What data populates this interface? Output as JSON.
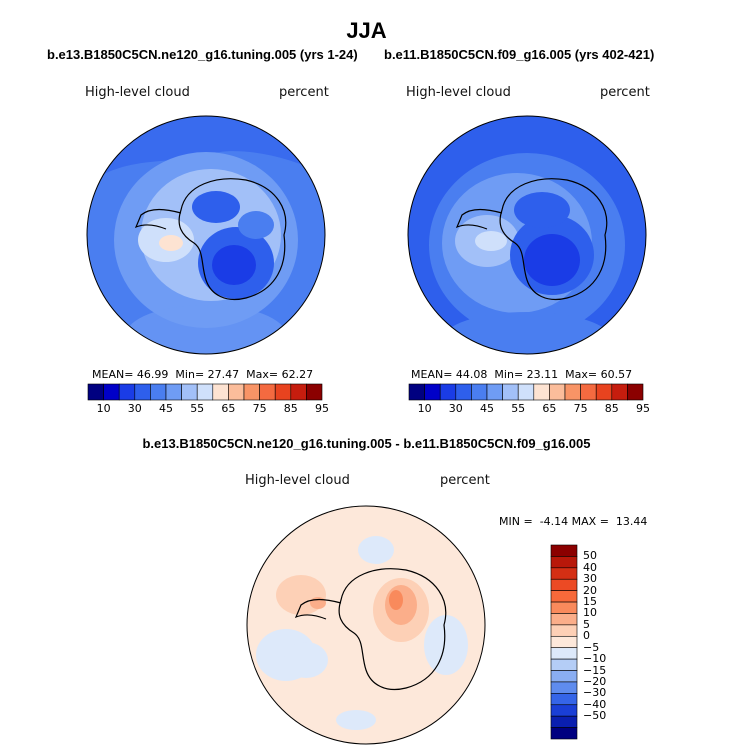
{
  "chart_data": [
    {
      "type": "heatmap",
      "projection": "south-polar-stereographic",
      "title": "JJA",
      "subtitle": "b.e13.B1850C5CN.ne120_g16.tuning.005 (yrs 1-24)",
      "variable_label": "High-level cloud",
      "units_label": "percent",
      "stats": {
        "mean_label": "MEAN=",
        "mean": "46.99",
        "min_label": "Min=",
        "min": "27.47",
        "max_label": "Max=",
        "max": "62.27"
      },
      "colorbar": {
        "orientation": "horizontal",
        "tick_labels": [
          "10",
          "30",
          "45",
          "55",
          "65",
          "75",
          "85",
          "95"
        ],
        "colors": [
          "#000080",
          "#0000c8",
          "#1a3ce6",
          "#2e5fec",
          "#4a7ef0",
          "#6f9cf4",
          "#a2c0f8",
          "#cfe0fb",
          "#fde3d2",
          "#fbbd9b",
          "#f89466",
          "#f46a40",
          "#e8431f",
          "#c61d0e",
          "#8b0000"
        ]
      }
    },
    {
      "type": "heatmap",
      "projection": "south-polar-stereographic",
      "subtitle": "b.e11.B1850C5CN.f09_g16.005 (yrs 402-421)",
      "variable_label": "High-level cloud",
      "units_label": "percent",
      "stats": {
        "mean_label": "MEAN=",
        "mean": "44.08",
        "min_label": "Min=",
        "min": "23.11",
        "max_label": "Max=",
        "max": "60.57"
      },
      "colorbar": {
        "orientation": "horizontal",
        "tick_labels": [
          "10",
          "30",
          "45",
          "55",
          "65",
          "75",
          "85",
          "95"
        ],
        "colors": [
          "#000080",
          "#0000c8",
          "#1a3ce6",
          "#2e5fec",
          "#4a7ef0",
          "#6f9cf4",
          "#a2c0f8",
          "#cfe0fb",
          "#fde3d2",
          "#fbbd9b",
          "#f89466",
          "#f46a40",
          "#e8431f",
          "#c61d0e",
          "#8b0000"
        ]
      }
    },
    {
      "type": "heatmap",
      "projection": "south-polar-stereographic",
      "subtitle": "b.e13.B1850C5CN.ne120_g16.tuning.005 - b.e11.B1850C5CN.f09_g16.005",
      "variable_label": "High-level cloud",
      "units_label": "percent",
      "stats": {
        "min_label": "MIN =",
        "min": "-4.14",
        "max_label": "MAX =",
        "max": "13.44"
      },
      "colorbar": {
        "orientation": "vertical",
        "tick_labels": [
          "50",
          "40",
          "30",
          "20",
          "15",
          "10",
          "5",
          "0",
          "−5",
          "−10",
          "−15",
          "−20",
          "−30",
          "−40",
          "−50"
        ],
        "colors": [
          "#8b0000",
          "#b8180a",
          "#d42f14",
          "#ec4a24",
          "#f7693a",
          "#f98a5c",
          "#fbae8a",
          "#fdd0b6",
          "#fde8da",
          "#dde9fa",
          "#b4cdf6",
          "#8aaef2",
          "#5f8cee",
          "#3565e8",
          "#1a3fd6",
          "#0a1fb0",
          "#000080"
        ]
      }
    }
  ]
}
